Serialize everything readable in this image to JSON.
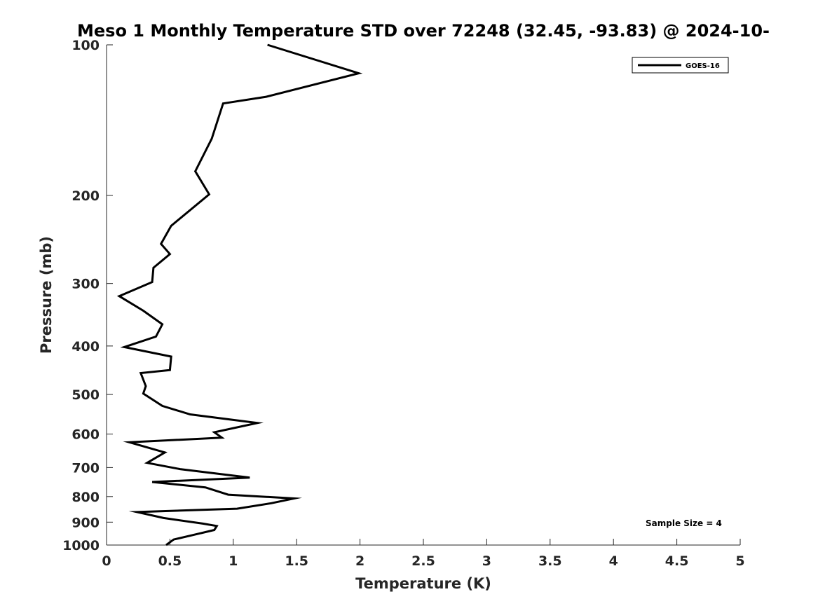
{
  "chart_data": {
    "type": "line",
    "title": "Meso 1 Monthly Temperature STD over 72248 (32.45, -93.83) @ 2024-10-",
    "xlabel": "Temperature (K)",
    "ylabel": "Pressure (mb)",
    "xlim": [
      0,
      5
    ],
    "ylim": [
      1000,
      100
    ],
    "y_scale": "log",
    "x_ticks": [
      "0",
      "0.5",
      "1",
      "1.5",
      "2",
      "2.5",
      "3",
      "3.5",
      "4",
      "4.5",
      "5"
    ],
    "y_ticks": [
      "100",
      "200",
      "300",
      "400",
      "500",
      "600",
      "700",
      "800",
      "900",
      "1000"
    ],
    "grid": false,
    "legend_position": "top-right",
    "annotation": "Sample Size = 4",
    "series": [
      {
        "name": "GOES-16",
        "color": "#000000",
        "x": [
          1.27,
          1.99,
          1.26,
          0.92,
          0.83,
          0.7,
          0.81,
          0.51,
          0.43,
          0.5,
          0.37,
          0.36,
          0.1,
          0.29,
          0.44,
          0.39,
          0.14,
          0.51,
          0.5,
          0.27,
          0.31,
          0.29,
          0.44,
          0.66,
          1.19,
          0.85,
          0.91,
          0.18,
          0.46,
          0.32,
          0.58,
          1.13,
          0.36,
          0.78,
          0.96,
          1.48,
          1.3,
          1.03,
          0.24,
          0.45,
          0.76,
          0.87,
          0.85,
          0.72,
          0.53,
          0.47
        ],
        "y": [
          100,
          114,
          127,
          131,
          154,
          179,
          199,
          230,
          250,
          262,
          279,
          298,
          318,
          340,
          362,
          383,
          402,
          420,
          447,
          453,
          481,
          498,
          527,
          548,
          570,
          595,
          610,
          623,
          653,
          685,
          705,
          733,
          748,
          767,
          793,
          807,
          825,
          846,
          859,
          883,
          906,
          916,
          933,
          950,
          975,
          1000
        ]
      }
    ]
  }
}
